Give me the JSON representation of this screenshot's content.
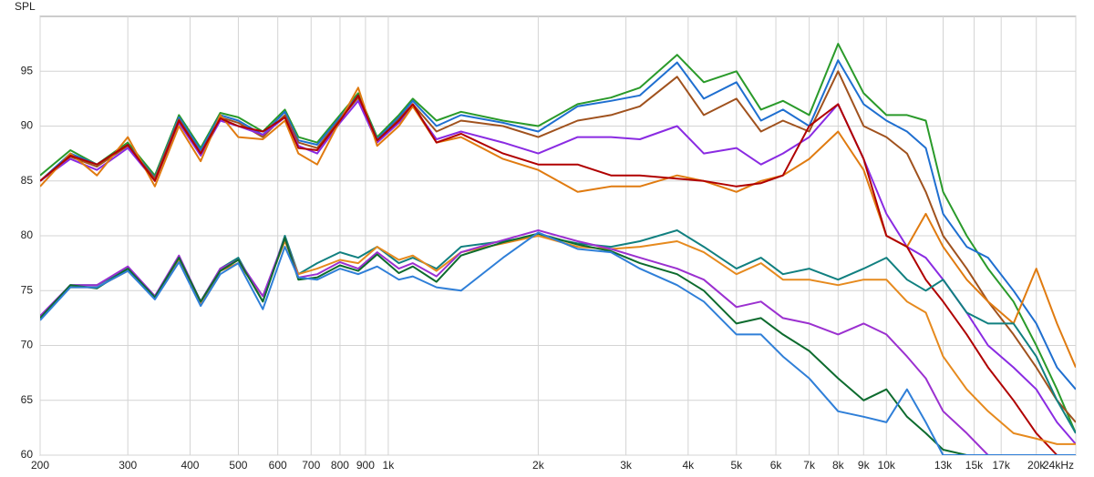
{
  "chart_data": {
    "type": "line",
    "y_label": "SPL",
    "x_scale": "log",
    "grid": true,
    "xlim": [
      200,
      24000
    ],
    "ylim": [
      60,
      100
    ],
    "xticks": [
      200,
      300,
      400,
      500,
      600,
      700,
      800,
      900,
      {
        "value": 1000,
        "label": "1k"
      },
      {
        "value": 2000,
        "label": "2k"
      },
      {
        "value": 3000,
        "label": "3k"
      },
      {
        "value": 4000,
        "label": "4k"
      },
      {
        "value": 5000,
        "label": "5k"
      },
      {
        "value": 6000,
        "label": "6k"
      },
      {
        "value": 7000,
        "label": "7k"
      },
      {
        "value": 8000,
        "label": "8k"
      },
      {
        "value": 9000,
        "label": "9k"
      },
      {
        "value": 10000,
        "label": "10k"
      },
      {
        "value": 13000,
        "label": "13k"
      },
      {
        "value": 15000,
        "label": "15k"
      },
      {
        "value": 17000,
        "label": "17k"
      },
      {
        "value": 20000,
        "label": "20k"
      },
      {
        "value": 24000,
        "label": "24kHz"
      }
    ],
    "yticks": [
      60,
      65,
      70,
      75,
      80,
      85,
      90,
      95
    ],
    "x": [
      200,
      230,
      260,
      300,
      340,
      380,
      420,
      460,
      500,
      560,
      620,
      660,
      720,
      800,
      870,
      950,
      1050,
      1120,
      1250,
      1400,
      1700,
      2000,
      2400,
      2800,
      3200,
      3800,
      4300,
      5000,
      5600,
      6200,
      7000,
      8000,
      9000,
      10000,
      11000,
      12000,
      13000,
      14500,
      16000,
      18000,
      20000,
      22000,
      24000
    ],
    "series": [
      {
        "color": "#2a9a2a",
        "values": [
          85.5,
          87.8,
          86.5,
          88.5,
          85.5,
          91,
          88,
          91.2,
          90.8,
          89.5,
          91.5,
          89,
          88.5,
          91,
          93,
          89,
          91,
          92.5,
          90.5,
          91.3,
          90.5,
          90,
          92,
          92.6,
          93.5,
          96.5,
          94,
          95,
          91.5,
          92.3,
          91,
          97.5,
          93,
          91,
          91,
          90.5,
          84,
          80,
          77,
          74,
          70,
          66,
          62
        ]
      },
      {
        "color": "#1f6fd0",
        "values": [
          85,
          87.5,
          86.5,
          88.3,
          85.3,
          90.8,
          87.8,
          91,
          90.5,
          89.2,
          91.3,
          88.7,
          88.3,
          90.8,
          92.8,
          88.8,
          90.8,
          92.3,
          90,
          91,
          90.3,
          89.5,
          91.8,
          92.3,
          92.8,
          95.8,
          92.5,
          94,
          90.5,
          91.5,
          90,
          96,
          92,
          90.5,
          89.5,
          88,
          82,
          79,
          78,
          75,
          72,
          68,
          66
        ]
      },
      {
        "color": "#a0521e",
        "values": [
          85,
          87.2,
          86.3,
          88.2,
          85.2,
          90.6,
          87.5,
          90.8,
          90.3,
          89,
          91,
          88.5,
          88,
          90.6,
          92.6,
          88.6,
          90.6,
          92,
          89.5,
          90.5,
          90,
          89,
          90.5,
          91,
          91.8,
          94.5,
          91,
          92.5,
          89.5,
          90.5,
          89.5,
          95,
          90,
          89,
          87.5,
          84,
          80,
          77,
          74,
          71,
          68,
          65,
          63
        ]
      },
      {
        "color": "#8a2be2",
        "values": [
          85,
          87,
          86,
          88,
          85,
          90.3,
          87.3,
          90.5,
          90,
          89.2,
          90.8,
          88.2,
          87.5,
          90.3,
          92.3,
          88.5,
          90.3,
          91.8,
          88.8,
          89.5,
          88.5,
          87.5,
          89,
          89,
          88.8,
          90,
          87.5,
          88,
          86.5,
          87.5,
          89,
          92,
          87,
          82,
          79,
          78,
          76,
          73,
          70,
          68,
          66,
          63,
          61
        ]
      },
      {
        "color": "#e07b10",
        "values": [
          84.5,
          87.5,
          85.5,
          89,
          84.5,
          90,
          86.8,
          91,
          89,
          88.8,
          90.5,
          87.5,
          86.5,
          90.5,
          93.5,
          88.2,
          90,
          91.8,
          88.5,
          89,
          87,
          86,
          84,
          84.5,
          84.5,
          85.5,
          85,
          84,
          85,
          85.5,
          87,
          89.5,
          86,
          80,
          79,
          82,
          79,
          76,
          74,
          72,
          77,
          72,
          68
        ]
      },
      {
        "color": "#b00000",
        "values": [
          85,
          87.3,
          86.5,
          88.3,
          85,
          90.5,
          87.5,
          90.7,
          90,
          89.5,
          90.8,
          88,
          87.8,
          90.5,
          92.8,
          88.7,
          90.5,
          92,
          88.5,
          89.3,
          87.5,
          86.5,
          86.5,
          85.5,
          85.5,
          85.2,
          85,
          84.5,
          84.8,
          85.5,
          90,
          92,
          87,
          80,
          79,
          76,
          74,
          71,
          68,
          65,
          62,
          60,
          60
        ]
      },
      {
        "color": "#118080",
        "values": [
          72.5,
          75.5,
          75.5,
          77,
          74.5,
          78,
          74,
          77,
          78,
          74,
          80,
          76.5,
          77.5,
          78.5,
          78,
          79,
          77.5,
          78,
          77,
          79,
          79.5,
          80,
          79.3,
          79,
          79.5,
          80.5,
          79,
          77,
          78,
          76.5,
          77,
          76,
          77,
          78,
          76,
          75,
          76,
          73,
          72,
          72,
          69,
          65,
          62
        ]
      },
      {
        "color": "#e68a1e",
        "values": [
          72.5,
          75.3,
          75.3,
          76.8,
          74.3,
          77.8,
          73.8,
          76.8,
          77.5,
          74.5,
          79.5,
          76.5,
          77,
          77.8,
          77.5,
          79,
          77.8,
          78.2,
          76.8,
          78.5,
          79.3,
          80,
          79,
          78.8,
          79,
          79.5,
          78.5,
          76.5,
          77.5,
          76,
          76,
          75.5,
          76,
          76,
          74,
          73,
          69,
          66,
          64,
          62,
          61.5,
          61,
          61
        ]
      },
      {
        "color": "#9b30d0",
        "values": [
          72.7,
          75.5,
          75.5,
          77.2,
          74.5,
          78.2,
          74,
          77,
          77.8,
          74.5,
          79.8,
          76.2,
          76.5,
          77.6,
          77,
          78.5,
          77,
          77.5,
          76.3,
          78.5,
          79.6,
          80.5,
          79.5,
          78.8,
          78,
          77,
          76,
          73.5,
          74,
          72.5,
          72,
          71,
          72,
          71,
          69,
          67,
          64,
          62,
          60,
          60,
          60,
          60,
          60
        ]
      },
      {
        "color": "#0d6b2e",
        "values": [
          72.5,
          75.5,
          75.2,
          77,
          74.4,
          78,
          74,
          76.8,
          77.8,
          74,
          79.8,
          76,
          76.2,
          77.3,
          76.8,
          78.3,
          76.6,
          77.2,
          75.8,
          78.2,
          79.4,
          80.2,
          79.2,
          78.6,
          77.5,
          76.5,
          75,
          72,
          72.5,
          71,
          69.5,
          67,
          65,
          66,
          63.5,
          62,
          60.5,
          60,
          60,
          60,
          60,
          60,
          60
        ]
      },
      {
        "color": "#2f7fd8",
        "values": [
          72.3,
          75.3,
          75.3,
          76.8,
          74.2,
          77.6,
          73.6,
          76.5,
          77.5,
          73.3,
          79,
          76.2,
          76,
          77,
          76.5,
          77.2,
          76,
          76.3,
          75.3,
          75,
          78,
          80.3,
          78.8,
          78.5,
          77,
          75.5,
          74,
          71,
          71,
          69,
          67,
          64,
          63.5,
          63,
          66,
          63,
          60,
          60,
          60,
          60,
          60,
          60,
          60
        ]
      }
    ]
  }
}
